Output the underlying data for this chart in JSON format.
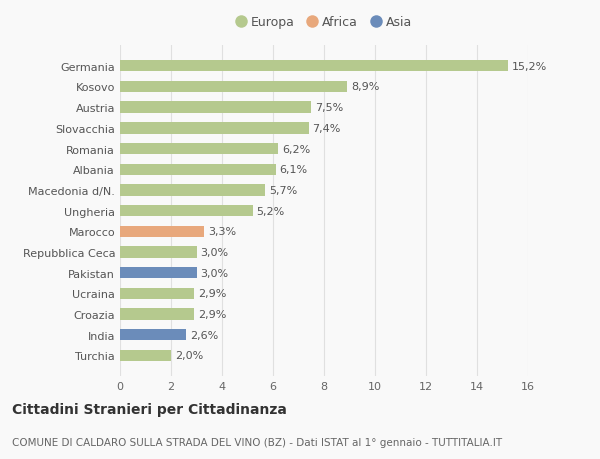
{
  "categories": [
    "Turchia",
    "India",
    "Croazia",
    "Ucraina",
    "Pakistan",
    "Repubblica Ceca",
    "Marocco",
    "Ungheria",
    "Macedonia d/N.",
    "Albania",
    "Romania",
    "Slovacchia",
    "Austria",
    "Kosovo",
    "Germania"
  ],
  "values": [
    2.0,
    2.6,
    2.9,
    2.9,
    3.0,
    3.0,
    3.3,
    5.2,
    5.7,
    6.1,
    6.2,
    7.4,
    7.5,
    8.9,
    15.2
  ],
  "colors": [
    "#b5c98e",
    "#6b8cba",
    "#b5c98e",
    "#b5c98e",
    "#6b8cba",
    "#b5c98e",
    "#e8a87c",
    "#b5c98e",
    "#b5c98e",
    "#b5c98e",
    "#b5c98e",
    "#b5c98e",
    "#b5c98e",
    "#b5c98e",
    "#b5c98e"
  ],
  "labels": [
    "2,0%",
    "2,6%",
    "2,9%",
    "2,9%",
    "3,0%",
    "3,0%",
    "3,3%",
    "5,2%",
    "5,7%",
    "6,1%",
    "6,2%",
    "7,4%",
    "7,5%",
    "8,9%",
    "15,2%"
  ],
  "legend": [
    {
      "label": "Europa",
      "color": "#b5c98e"
    },
    {
      "label": "Africa",
      "color": "#e8a87c"
    },
    {
      "label": "Asia",
      "color": "#6b8cba"
    }
  ],
  "title": "Cittadini Stranieri per Cittadinanza",
  "subtitle": "COMUNE DI CALDARO SULLA STRADA DEL VINO (BZ) - Dati ISTAT al 1° gennaio - TUTTITALIA.IT",
  "xlim": [
    0,
    16
  ],
  "xticks": [
    0,
    2,
    4,
    6,
    8,
    10,
    12,
    14,
    16
  ],
  "background_color": "#f9f9f9",
  "grid_color": "#e0e0e0",
  "bar_height": 0.55,
  "title_fontsize": 10,
  "subtitle_fontsize": 7.5,
  "tick_fontsize": 8,
  "label_fontsize": 8
}
